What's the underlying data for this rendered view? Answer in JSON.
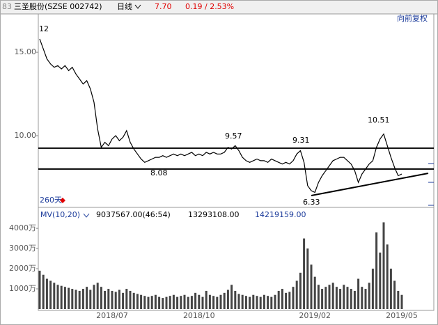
{
  "header": {
    "code": "83",
    "name": "三圣股份(SZSE 002742)",
    "period": "日线",
    "price": "7.70",
    "change": "0.19 / 2.53%",
    "adjust": "向前复权"
  },
  "chart_data": [
    {
      "type": "line",
      "color": "#000000",
      "values": [
        15.8,
        15.2,
        14.6,
        14.3,
        14.1,
        14.2,
        14.0,
        14.2,
        13.9,
        14.1,
        13.7,
        13.4,
        13.1,
        13.3,
        12.8,
        12.0,
        10.4,
        9.3,
        9.6,
        9.4,
        9.8,
        10.0,
        9.7,
        9.9,
        10.3,
        9.6,
        9.2,
        8.9,
        8.6,
        8.4,
        8.5,
        8.6,
        8.7,
        8.7,
        8.8,
        8.7,
        8.8,
        8.9,
        8.8,
        8.9,
        8.8,
        8.9,
        9.0,
        8.8,
        8.9,
        8.8,
        9.0,
        8.9,
        9.0,
        8.9,
        8.9,
        9.0,
        9.3,
        9.2,
        9.4,
        9.1,
        8.7,
        8.5,
        8.4,
        8.5,
        8.6,
        8.5,
        8.5,
        8.4,
        8.6,
        8.5,
        8.4,
        8.3,
        8.4,
        8.3,
        8.5,
        8.9,
        9.1,
        8.4,
        7.0,
        6.7,
        6.6,
        7.2,
        7.6,
        7.9,
        8.2,
        8.5,
        8.6,
        8.7,
        8.7,
        8.5,
        8.3,
        7.9,
        7.2,
        7.7,
        8.0,
        8.3,
        8.5,
        9.3,
        9.8,
        10.1,
        9.4,
        8.7,
        8.1,
        7.6,
        7.7
      ],
      "ylim": [
        5.7,
        17.3
      ],
      "yticks": [
        {
          "value": 10,
          "label": "10.00"
        },
        {
          "value": 15,
          "label": "15.00"
        }
      ],
      "reference_lines": [
        9.25,
        8.0
      ],
      "annotations": [
        "12",
        "9.57",
        "9.31",
        "10.51",
        "8.08",
        "6.33"
      ],
      "period_label": "260天"
    },
    {
      "type": "bar",
      "color": "#444444",
      "title": "MV(10,20)",
      "stats": [
        "9037567.00(46:54)",
        "13293108.00",
        "14219159.00"
      ],
      "categories": [
        null,
        null,
        null,
        null,
        null,
        null,
        null,
        null,
        null,
        null,
        null,
        null,
        null,
        null,
        null,
        null,
        null,
        null,
        null,
        null,
        "2018/07",
        null,
        null,
        null,
        null,
        null,
        null,
        null,
        null,
        null,
        null,
        null,
        null,
        null,
        null,
        null,
        null,
        null,
        null,
        null,
        null,
        null,
        null,
        null,
        "2018/10",
        null,
        null,
        null,
        null,
        null,
        null,
        null,
        null,
        null,
        null,
        null,
        null,
        null,
        null,
        null,
        null,
        null,
        null,
        null,
        null,
        null,
        null,
        null,
        null,
        null,
        null,
        null,
        null,
        null,
        null,
        null,
        "2019/02",
        null,
        null,
        null,
        null,
        null,
        null,
        null,
        null,
        null,
        null,
        null,
        null,
        null,
        null,
        null,
        null,
        null,
        null,
        null,
        null,
        null,
        null,
        null,
        "2019/05"
      ],
      "values": [
        1900,
        1700,
        1500,
        1400,
        1300,
        1200,
        1150,
        1100,
        1050,
        1000,
        950,
        900,
        1000,
        1100,
        950,
        1200,
        1300,
        1100,
        900,
        1000,
        900,
        850,
        950,
        800,
        1000,
        900,
        800,
        750,
        700,
        650,
        600,
        650,
        700,
        600,
        550,
        600,
        650,
        700,
        600,
        650,
        700,
        600,
        650,
        800,
        700,
        600,
        900,
        700,
        650,
        600,
        700,
        800,
        950,
        1200,
        900,
        750,
        700,
        650,
        600,
        700,
        650,
        600,
        700,
        650,
        600,
        700,
        900,
        1000,
        800,
        850,
        1100,
        1400,
        1800,
        3500,
        3000,
        2200,
        1600,
        1200,
        1000,
        1100,
        1200,
        1300,
        1100,
        1000,
        1200,
        1100,
        1000,
        900,
        1500,
        1100,
        1000,
        1300,
        2000,
        3800,
        2800,
        4300,
        3200,
        2000,
        1400,
        900,
        700
      ],
      "ylim": [
        0,
        4350
      ],
      "yticks": [
        {
          "value": 1000,
          "label": "1000万"
        },
        {
          "value": 2000,
          "label": "2000万"
        },
        {
          "value": 3000,
          "label": "3000万"
        },
        {
          "value": 4000,
          "label": "4000万"
        }
      ]
    }
  ]
}
